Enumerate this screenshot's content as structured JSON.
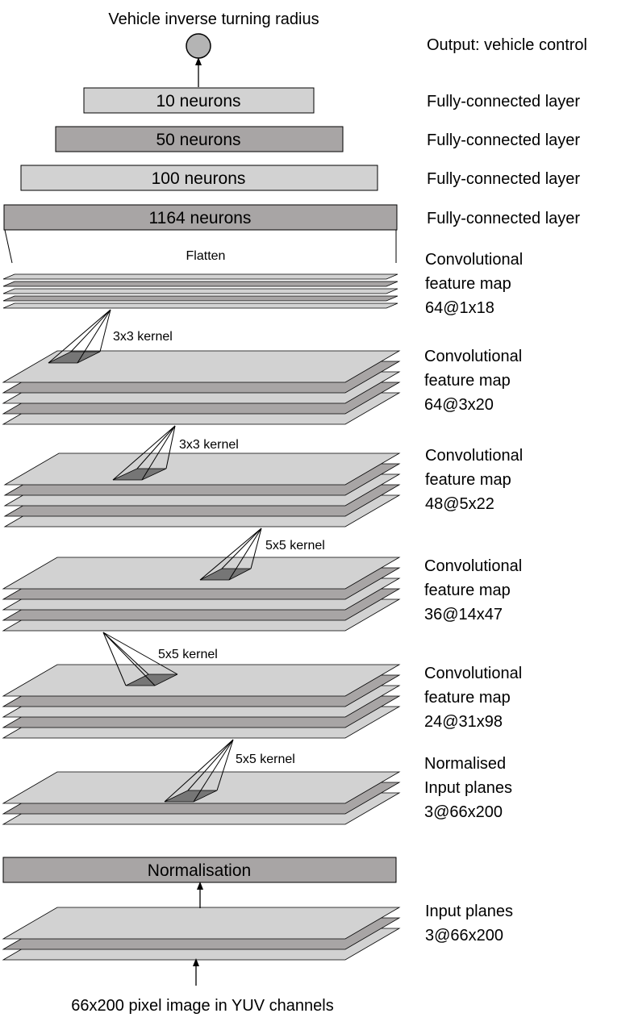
{
  "diagram": {
    "top_label": "Vehicle inverse turning radius",
    "bottom_label": "66x200 pixel image in YUV channels",
    "flatten_label": "Flatten",
    "fc_layers": [
      {
        "text": "10 neurons",
        "side": "Fully-connected layer"
      },
      {
        "text": "50 neurons",
        "side": "Fully-connected layer"
      },
      {
        "text": "100 neurons",
        "side": "Fully-connected layer"
      },
      {
        "text": "1164 neurons",
        "side": "Fully-connected layer"
      }
    ],
    "output_label": "Output: vehicle control",
    "normalisation_label": "Normalisation",
    "layers": [
      {
        "lines": [
          "Convolutional",
          "feature map",
          "64@1x18"
        ]
      },
      {
        "lines": [
          "Convolutional",
          "feature map",
          "64@3x20"
        ]
      },
      {
        "lines": [
          "Convolutional",
          "feature map",
          "48@5x22"
        ]
      },
      {
        "lines": [
          "Convolutional",
          "feature map",
          "36@14x47"
        ]
      },
      {
        "lines": [
          "Convolutional",
          "feature map",
          "24@31x98"
        ]
      },
      {
        "lines": [
          "Normalised",
          "Input planes",
          "3@66x200"
        ]
      },
      {
        "lines": [
          "Input planes",
          "3@66x200"
        ]
      }
    ],
    "kernels": [
      "3x3 kernel",
      "3x3 kernel",
      "5x5 kernel",
      "5x5 kernel",
      "5x5 kernel"
    ],
    "colors": {
      "light": "#d2d2d2",
      "mid": "#a8a5a5",
      "dark": "#767676",
      "node": "#b4b4b4"
    }
  }
}
